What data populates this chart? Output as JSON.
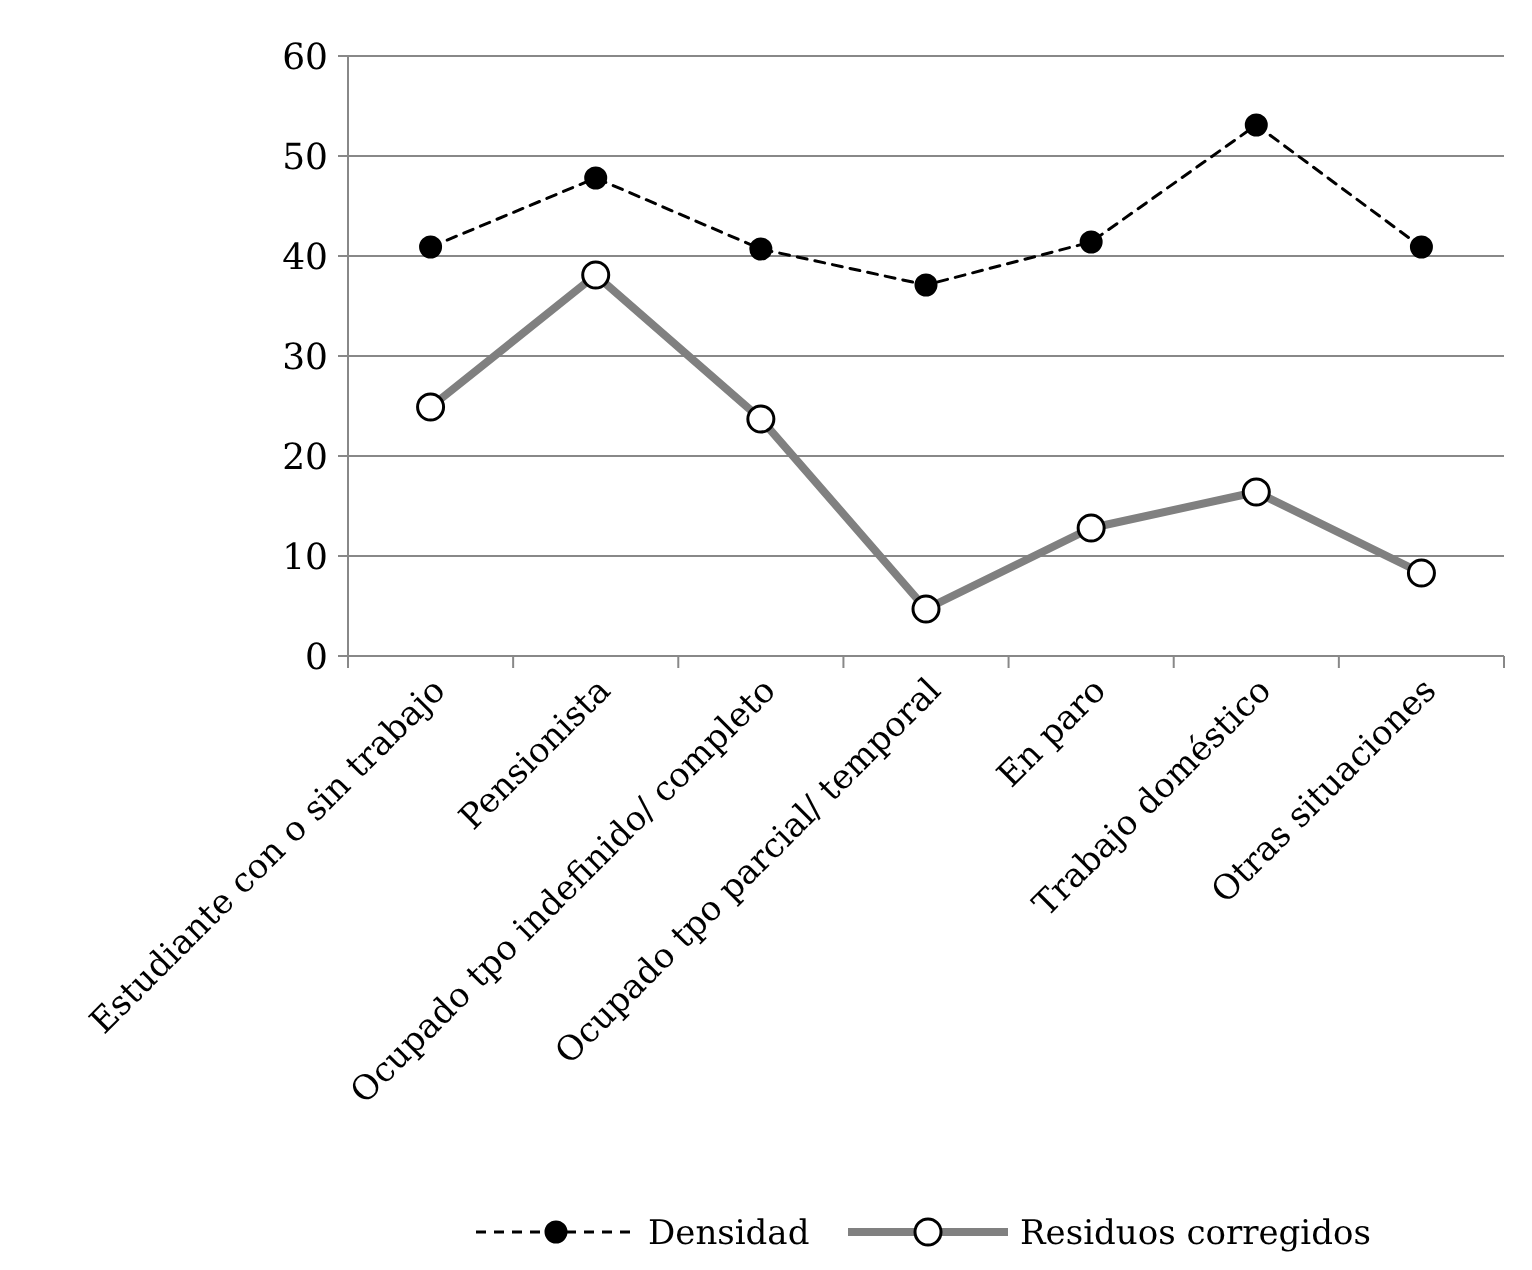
{
  "chart_data": {
    "type": "line",
    "categories": [
      "Estudiante con o sin trabajo",
      "Pensionista",
      "Ocupado tpo indefinido/ completo",
      "Ocupado tpo parcial/ temporal",
      "En paro",
      "Trabajo doméstico",
      "Otras situaciones"
    ],
    "series": [
      {
        "name": "Densidad",
        "color": "#000000",
        "line_style": "dashed",
        "values": [
          40.9,
          47.8,
          40.7,
          37.1,
          41.4,
          53.1,
          40.9
        ]
      },
      {
        "name": "Residuos corregidos",
        "color": "#808080",
        "line_style": "solid",
        "values": [
          24.9,
          38.1,
          23.7,
          4.7,
          12.8,
          16.4,
          8.3
        ]
      }
    ],
    "ylim": [
      0,
      60
    ],
    "yticks": [
      0,
      10,
      20,
      30,
      40,
      50,
      60
    ],
    "grid": "y",
    "marker": "circle",
    "legend": "bottom"
  }
}
